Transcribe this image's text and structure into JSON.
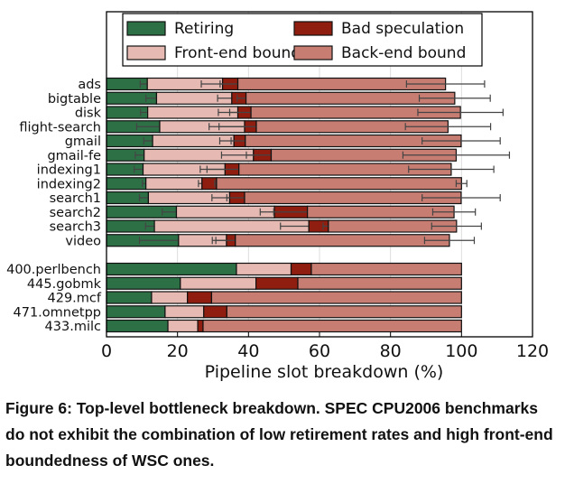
{
  "chart_data": {
    "type": "bar",
    "orientation": "horizontal-stacked",
    "xlabel": "Pipeline slot breakdown (%)",
    "xlim": [
      0,
      120
    ],
    "xticks": [
      "0",
      "20",
      "40",
      "60",
      "80",
      "100",
      "120"
    ],
    "legend_position": "top",
    "series_names": [
      "Retiring",
      "Front-end bound",
      "Bad speculation",
      "Back-end bound"
    ],
    "colors": [
      "#2e7046",
      "#e6bab2",
      "#8f1e10",
      "#c77d72"
    ],
    "groups": [
      {
        "categories": [
          "ads",
          "bigtable",
          "disk",
          "flight-search",
          "gmail",
          "gmail-fe",
          "indexing1",
          "indexing2",
          "search1",
          "search2",
          "search3",
          "video"
        ],
        "values": [
          [
            11.5,
            21.2,
            4.3,
            58.5
          ],
          [
            14.1,
            21.2,
            4.0,
            58.8
          ],
          [
            11.6,
            25.4,
            3.7,
            59.0
          ],
          [
            15.0,
            23.9,
            3.3,
            54.0
          ],
          [
            13.0,
            22.9,
            3.2,
            60.8
          ],
          [
            10.6,
            30.8,
            5.0,
            52.1
          ],
          [
            10.3,
            23.1,
            3.9,
            59.8
          ],
          [
            11.1,
            15.8,
            4.1,
            69.0
          ],
          [
            11.8,
            22.9,
            4.2,
            61.0
          ],
          [
            19.7,
            27.6,
            9.3,
            41.3
          ],
          [
            13.5,
            43.5,
            5.5,
            36.1
          ],
          [
            20.3,
            13.5,
            2.5,
            60.3
          ]
        ],
        "errors": [
          [
            2,
            6,
            5,
            11
          ],
          [
            3,
            4,
            2.5,
            10
          ],
          [
            2,
            5.5,
            6,
            12
          ],
          [
            6.5,
            10,
            10.5,
            12
          ],
          [
            2.5,
            4,
            4,
            11
          ],
          [
            2.5,
            9,
            7,
            15
          ],
          [
            2.5,
            7,
            9,
            12
          ],
          [
            1,
            1,
            0.5,
            1.5
          ],
          [
            2.5,
            5,
            5,
            11
          ],
          [
            4,
            4,
            9.5,
            6
          ],
          [
            2.5,
            8,
            1.5,
            7
          ],
          [
            11,
            4,
            5.5,
            7
          ]
        ]
      },
      {
        "categories": [
          "400.perlbench",
          "445.gobmk",
          "429.mcf",
          "471.omnetpp",
          "433.milc"
        ],
        "values": [
          [
            36.6,
            15.4,
            5.7,
            42.3
          ],
          [
            20.8,
            21.3,
            11.8,
            46.1
          ],
          [
            12.7,
            10.1,
            6.8,
            70.4
          ],
          [
            16.5,
            10.9,
            6.5,
            66.1
          ],
          [
            17.3,
            8.4,
            1.5,
            72.8
          ]
        ]
      }
    ]
  },
  "caption": "Figure 6: Top-level bottleneck breakdown. SPEC CPU2006 benchmarks do not exhibit the combination of low retirement rates and high front-end boundedness of WSC ones."
}
